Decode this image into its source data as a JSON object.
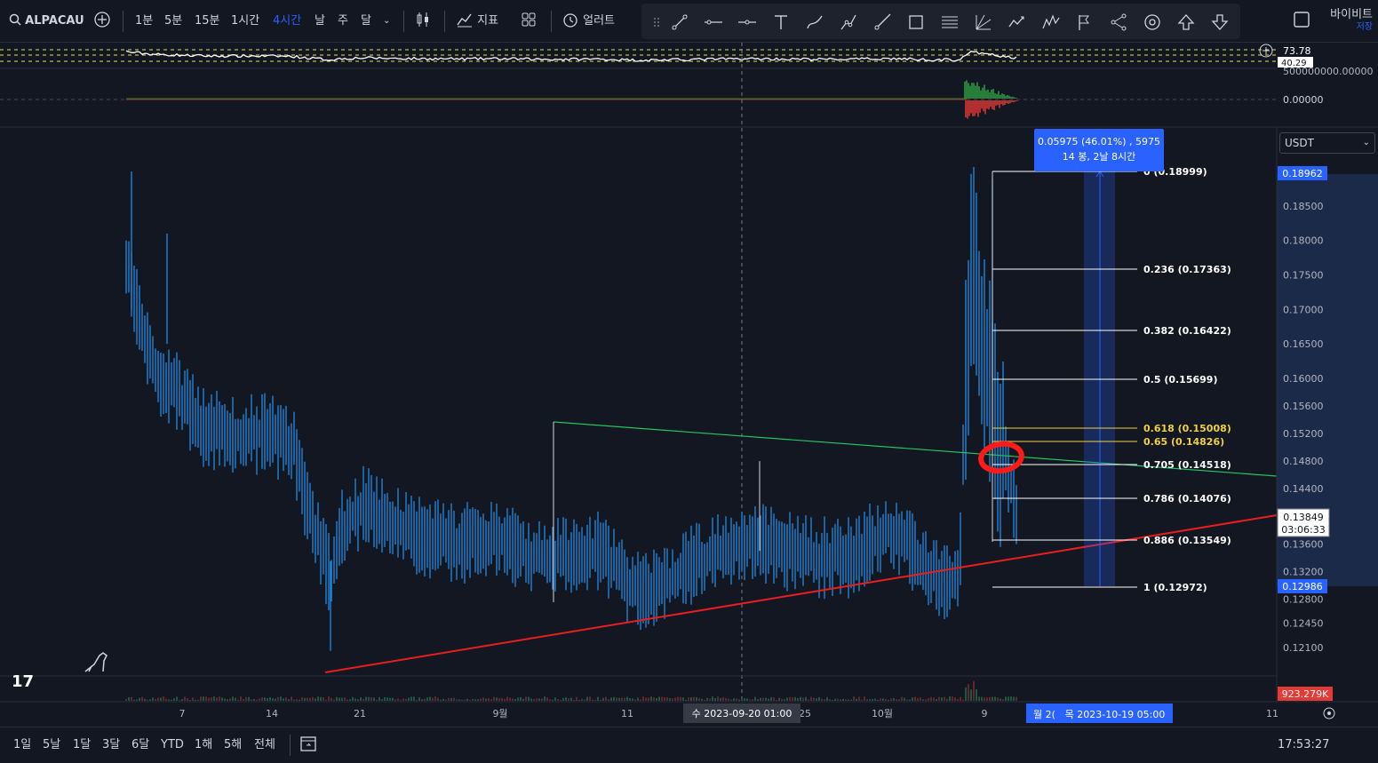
{
  "toolbar": {
    "symbol": "ALPACAU",
    "timeframes": [
      "1분",
      "5분",
      "15분",
      "1시간",
      "4시간",
      "날",
      "주",
      "달"
    ],
    "active_timeframe": "4시간",
    "indicators_label": "지표",
    "alert_label": "얼러트",
    "exchange": "바이비트",
    "save_label": "저장"
  },
  "oscillator": {
    "rsi_value": "73.78",
    "rsi_prev": "40.29",
    "volume_axis_top": "500000000.00000",
    "zero_label": "0.00000"
  },
  "price_axis": {
    "currency": "USDT",
    "ticks": [
      "0.18500",
      "0.18000",
      "0.17500",
      "0.17000",
      "0.16500",
      "0.16000",
      "0.15600",
      "0.15200",
      "0.14800",
      "0.14400",
      "0.14000",
      "0.13600",
      "0.13200",
      "0.12800",
      "0.12450",
      "0.12100"
    ],
    "top_marker": "0.18962",
    "bottom_marker": "0.12986",
    "current_price": "0.13849",
    "countdown": "03:06:33",
    "volume_value": "923.279K"
  },
  "fib_levels": [
    {
      "ratio": "0",
      "label": "0 (0.18999)",
      "color": "#ffffff"
    },
    {
      "ratio": "0.236",
      "label": "0.236 (0.17363)",
      "color": "#ffffff"
    },
    {
      "ratio": "0.382",
      "label": "0.382 (0.16422)",
      "color": "#ffffff"
    },
    {
      "ratio": "0.5",
      "label": "0.5 (0.15699)",
      "color": "#ffffff"
    },
    {
      "ratio": "0.618",
      "label": "0.618 (0.15008)",
      "color": "#f0d040"
    },
    {
      "ratio": "0.65",
      "label": "0.65 (0.14826)",
      "color": "#f0d040"
    },
    {
      "ratio": "0.705",
      "label": "0.705 (0.14518)",
      "color": "#ffffff"
    },
    {
      "ratio": "0.786",
      "label": "0.786 (0.14076)",
      "color": "#ffffff"
    },
    {
      "ratio": "0.886",
      "label": "0.886 (0.13549)",
      "color": "#ffffff"
    },
    {
      "ratio": "1",
      "label": "1 (0.12972)",
      "color": "#ffffff"
    }
  ],
  "measure_tooltip": {
    "line1": "0.05975 (46.01%) , 5975",
    "line2": "14 봉, 2날 8시간"
  },
  "time_axis": {
    "labels": [
      "7",
      "14",
      "21",
      "9월",
      "11",
      "25",
      "10월",
      "9",
      "11"
    ],
    "crosshair_label": "수 2023-09-20   01:00",
    "range_label_left": "월 2(",
    "range_label": "목 2023-10-19   05:00"
  },
  "bottom_bar": {
    "ranges": [
      "1일",
      "5날",
      "1달",
      "3달",
      "6달",
      "YTD",
      "1해",
      "5해",
      "전체"
    ],
    "clock": "17:53:27 (UTC+9)"
  },
  "colors": {
    "background": "#131722",
    "candle": "#2196f3",
    "trend_green": "#22c55e",
    "trend_red": "#e91e1e",
    "accent": "#2962ff"
  }
}
